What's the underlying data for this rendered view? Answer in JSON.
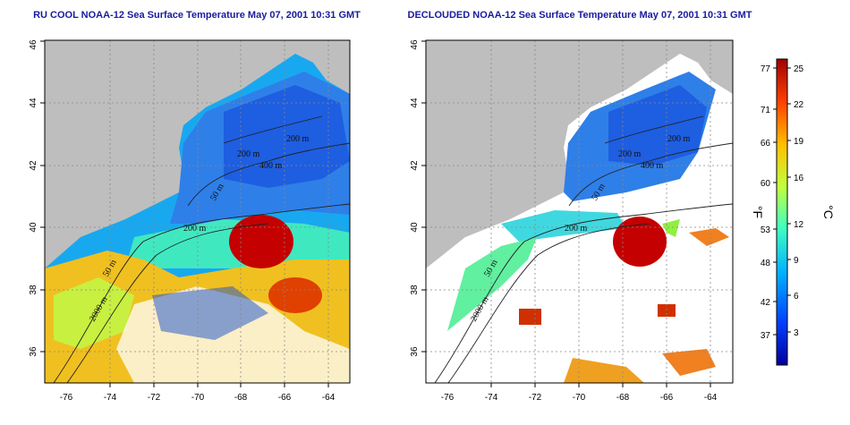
{
  "maps": [
    {
      "title": "RU COOL NOAA-12 Sea Surface Temperature May 07, 2001 10:31 GMT",
      "contour_labels": [
        "200 m",
        "400 m",
        "200 m",
        "50 m",
        "2000 m",
        "50 m",
        "200 m"
      ]
    },
    {
      "title": "DECLOUDED NOAA-12 Sea Surface Temperature May 07, 2001 10:31 GMT",
      "contour_labels": [
        "200 m",
        "400 m",
        "200 m",
        "50 m",
        "2000 m",
        "50 m",
        "200 m"
      ]
    }
  ],
  "axes": {
    "lon_ticks": [
      "-76",
      "-74",
      "-72",
      "-70",
      "-68",
      "-66",
      "-64"
    ],
    "lat_ticks": [
      "36",
      "38",
      "40",
      "42",
      "44",
      "46"
    ],
    "lon_range": [
      -77,
      -63
    ],
    "lat_range": [
      35,
      46
    ]
  },
  "colorbar": {
    "f_label": "°F",
    "c_label": "°C",
    "f_ticks": [
      "77",
      "71",
      "66",
      "60",
      "53",
      "48",
      "42",
      "37"
    ],
    "c_ticks": [
      "25",
      "22",
      "19",
      "16",
      "12",
      "9",
      "6",
      "3"
    ],
    "colors": [
      "#00009c",
      "#0040ff",
      "#00b0ff",
      "#40ffc0",
      "#c0ff40",
      "#ffc000",
      "#ff4000",
      "#a00000"
    ]
  },
  "colors": {
    "land": "#bebebe",
    "cloud": "#ffffff",
    "title": "#1a1aa0"
  }
}
